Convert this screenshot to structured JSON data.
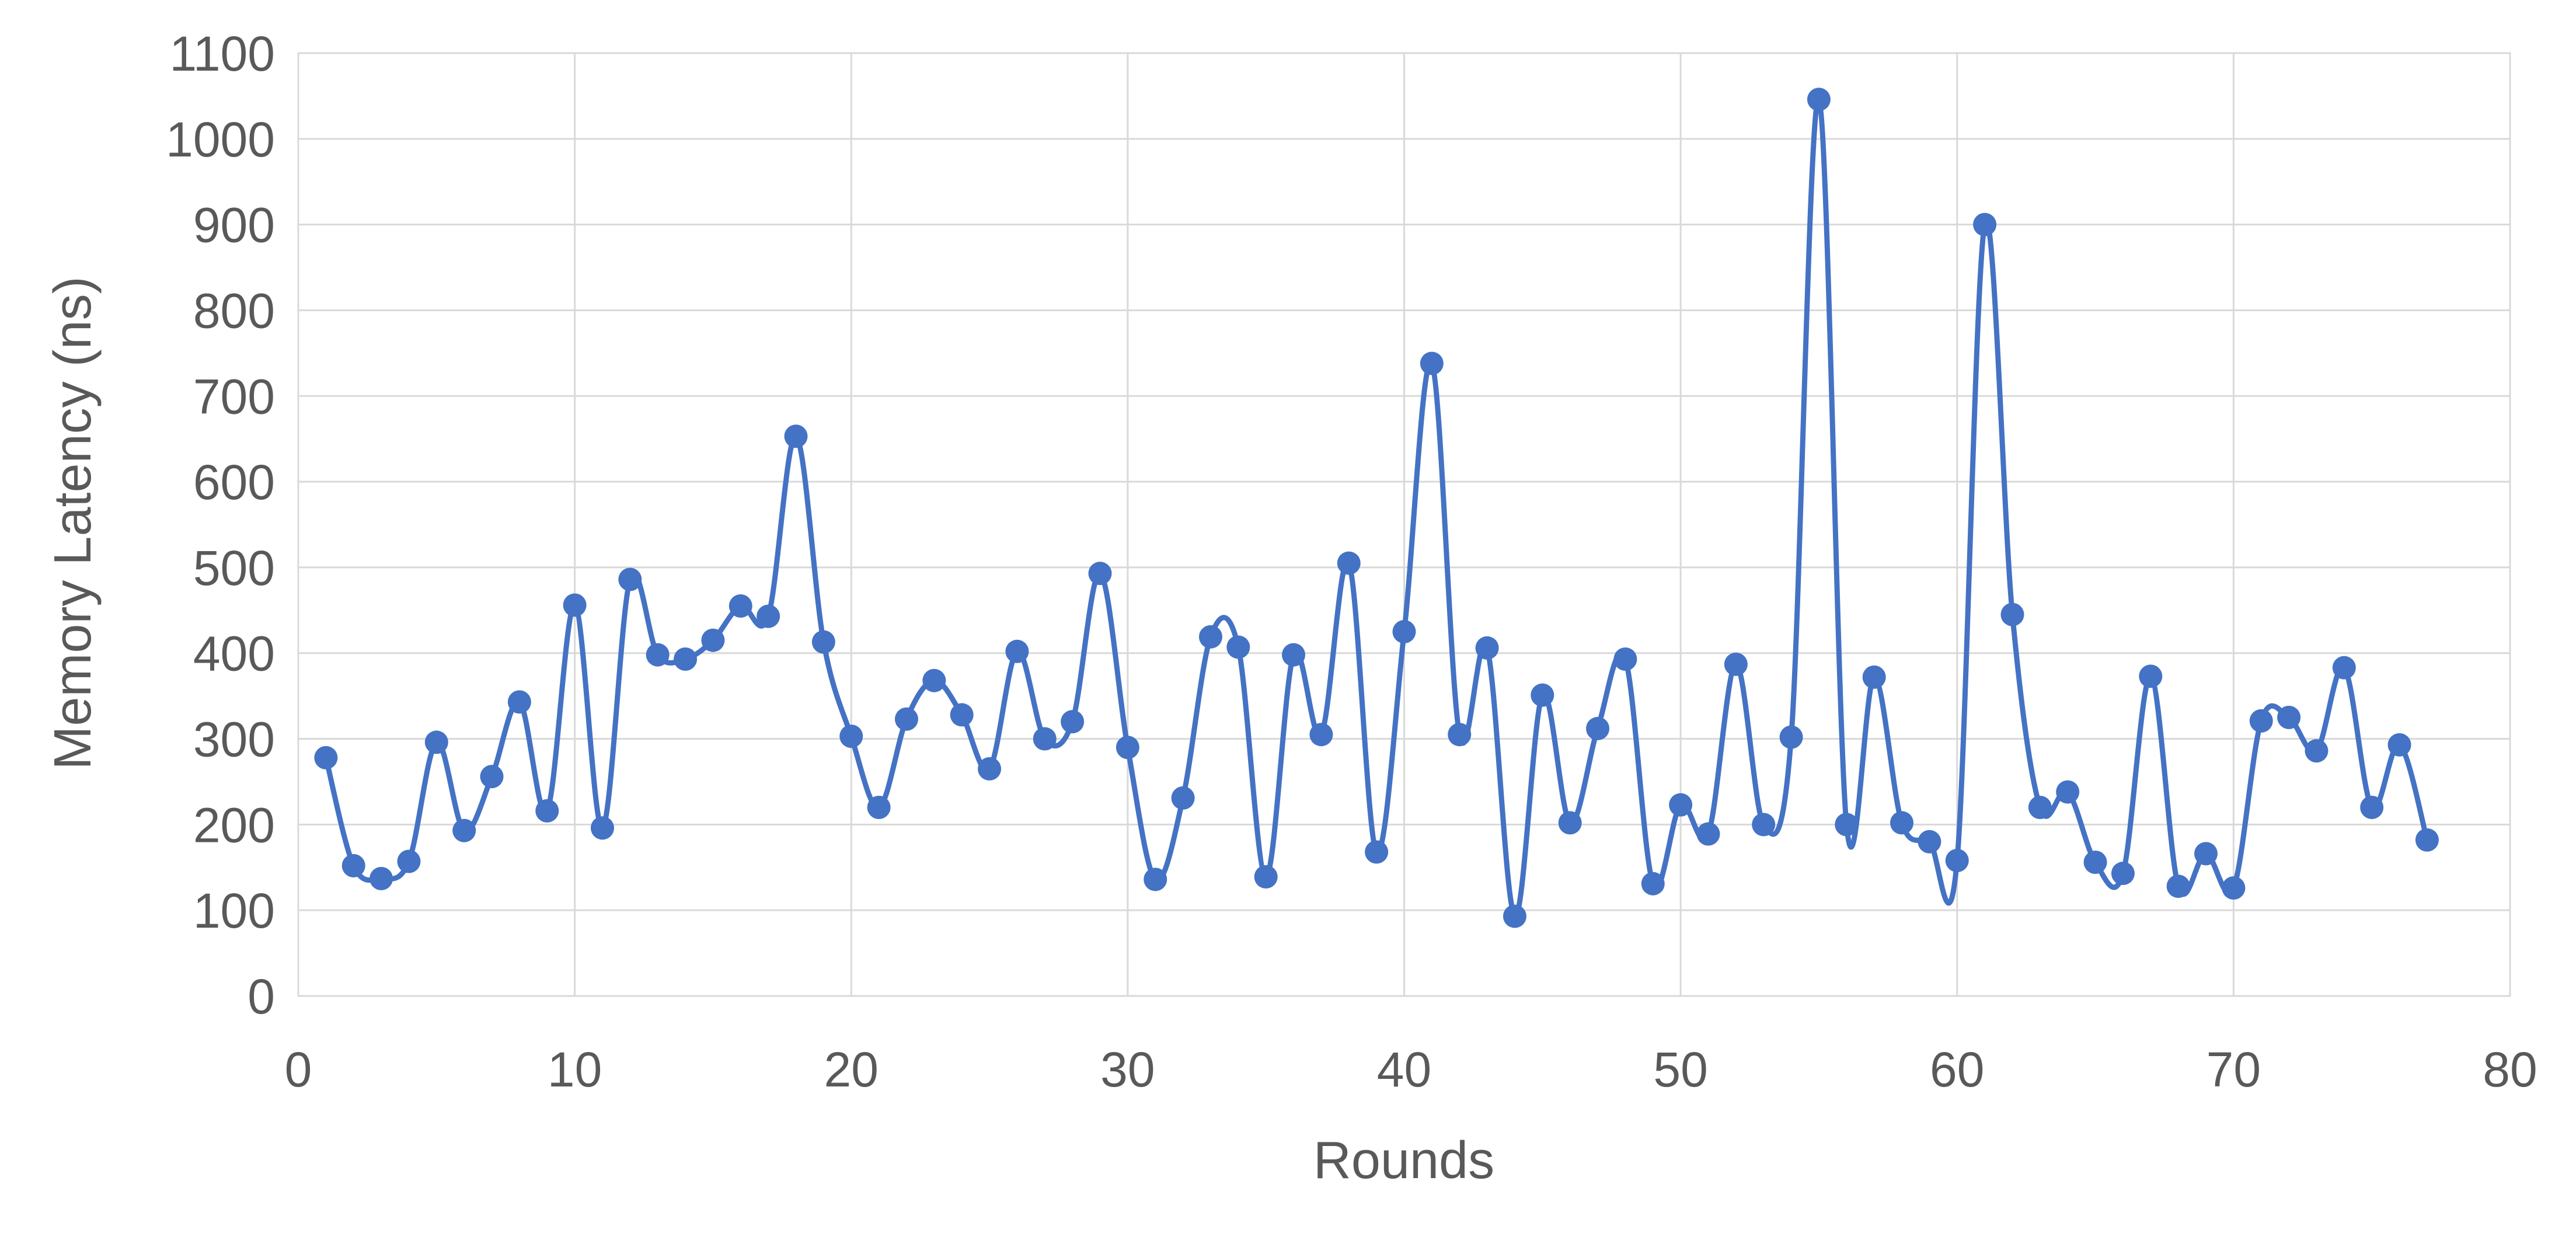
{
  "chart_data": {
    "type": "line",
    "smooth": true,
    "markers": true,
    "title": "",
    "xlabel": "Rounds",
    "ylabel": "Memory Latency (ns)",
    "xlim": [
      0,
      80
    ],
    "ylim": [
      0,
      1100
    ],
    "xticks": [
      0,
      10,
      20,
      30,
      40,
      50,
      60,
      70,
      80
    ],
    "yticks": [
      0,
      100,
      200,
      300,
      400,
      500,
      600,
      700,
      800,
      900,
      1000,
      1100
    ],
    "grid": true,
    "legend": "none",
    "series": [
      {
        "color": "#4472c4",
        "x": [
          1,
          2,
          3,
          4,
          5,
          6,
          7,
          8,
          9,
          10,
          11,
          12,
          13,
          14,
          15,
          16,
          17,
          18,
          19,
          20,
          21,
          22,
          23,
          24,
          25,
          26,
          27,
          28,
          29,
          30,
          31,
          32,
          33,
          34,
          35,
          36,
          37,
          38,
          39,
          40,
          41,
          42,
          43,
          44,
          45,
          46,
          47,
          48,
          49,
          50,
          51,
          52,
          53,
          54,
          55,
          56,
          57,
          58,
          59,
          60,
          61,
          62,
          63,
          64,
          65,
          66,
          67,
          68,
          69,
          70,
          71,
          72,
          73,
          74,
          75,
          76,
          77
        ],
        "values": [
          278,
          152,
          137,
          157,
          296,
          193,
          256,
          343,
          216,
          456,
          196,
          486,
          398,
          393,
          415,
          455,
          443,
          653,
          413,
          303,
          220,
          323,
          368,
          328,
          265,
          402,
          300,
          320,
          493,
          290,
          136,
          231,
          419,
          407,
          139,
          398,
          305,
          505,
          168,
          425,
          738,
          305,
          406,
          93,
          351,
          202,
          312,
          393,
          131,
          223,
          189,
          387,
          200,
          302,
          1046,
          200,
          372,
          202,
          180,
          158,
          900,
          445,
          220,
          238,
          156,
          143,
          373,
          128,
          166,
          126,
          321,
          325,
          286,
          383,
          220,
          293,
          182
        ]
      }
    ]
  }
}
